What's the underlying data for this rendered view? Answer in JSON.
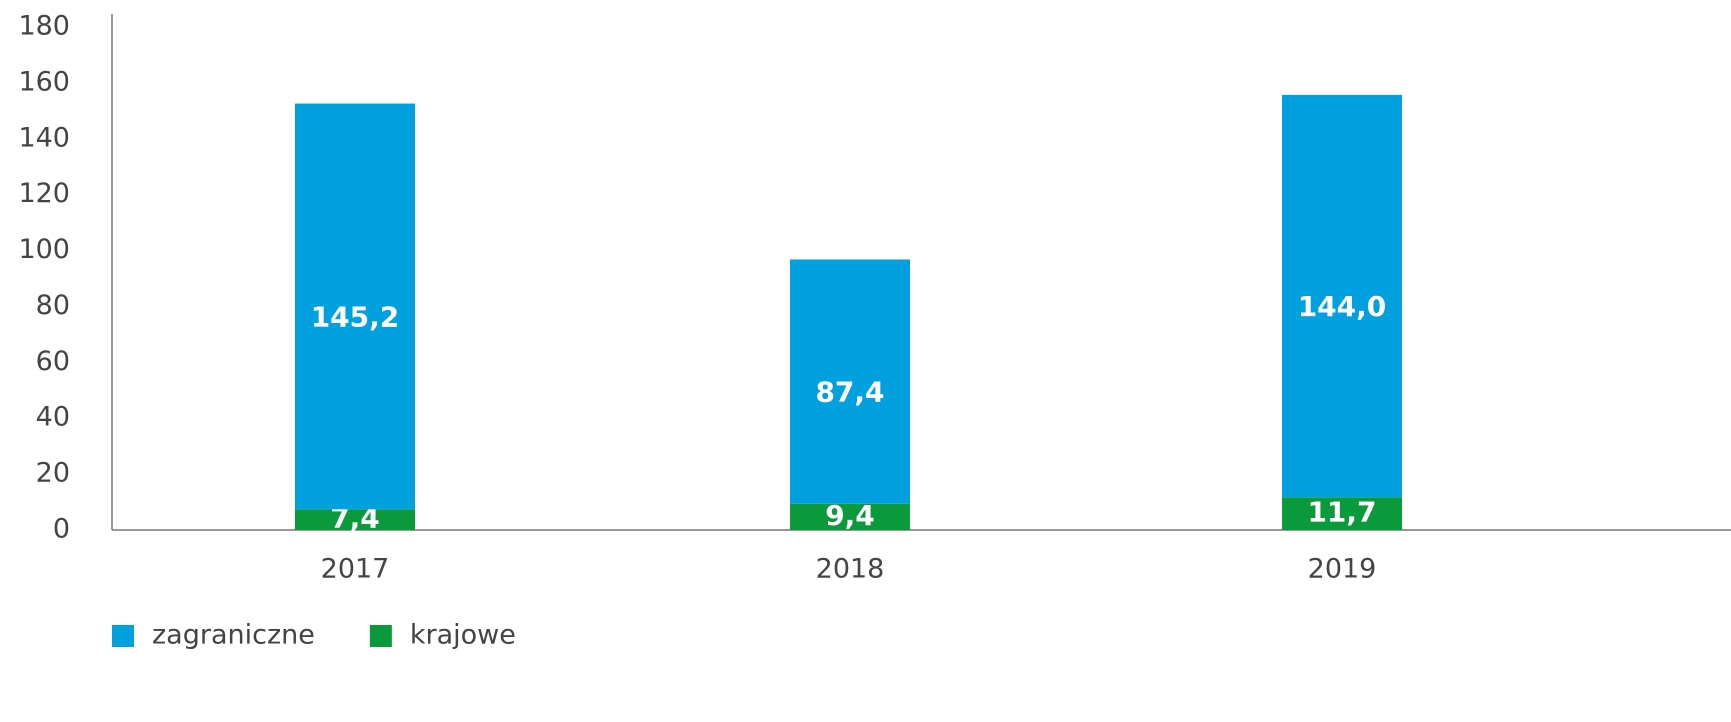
{
  "chart_data": {
    "type": "stacked_bar",
    "categories": [
      "2017",
      "2018",
      "2019"
    ],
    "series": [
      {
        "name": "zagraniczne",
        "color": "#00a1de",
        "values": [
          145.2,
          87.4,
          144.0
        ],
        "value_labels": [
          "145,2",
          "87,4",
          "144,0"
        ]
      },
      {
        "name": "krajowe",
        "color": "#0a9a3c",
        "values": [
          7.4,
          9.4,
          11.7
        ],
        "value_labels": [
          "7,4",
          "9,4",
          "11,7"
        ]
      }
    ],
    "ylim": [
      0,
      180
    ],
    "yticks": [
      0,
      20,
      40,
      60,
      80,
      100,
      120,
      140,
      160,
      180
    ],
    "grid": false,
    "legend": "bottom-left"
  }
}
